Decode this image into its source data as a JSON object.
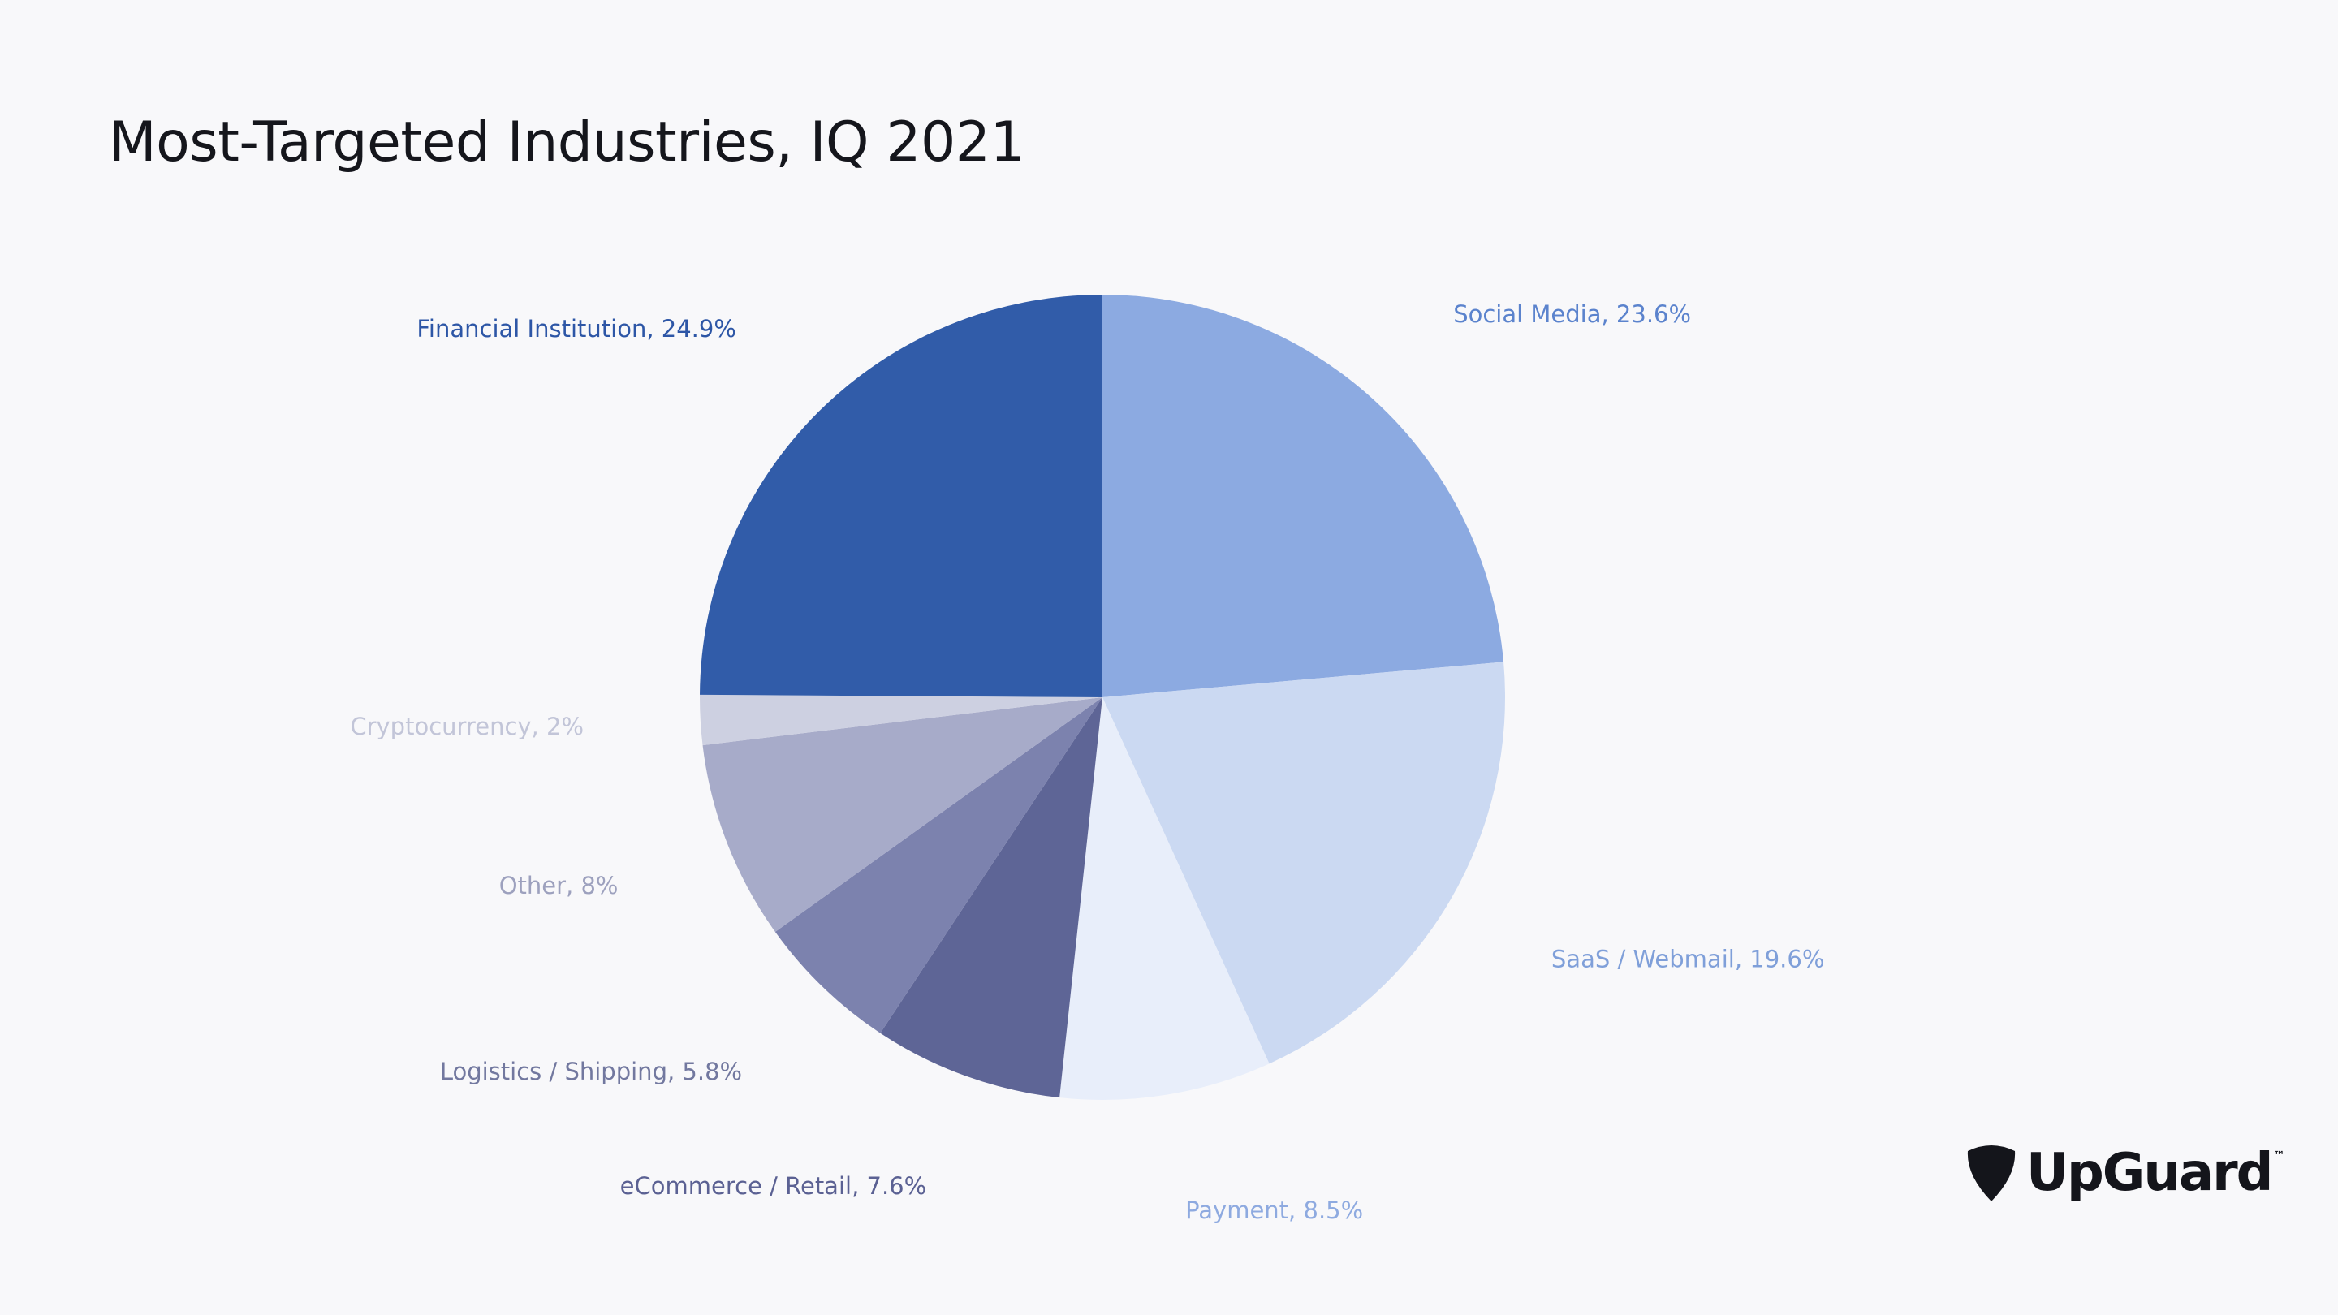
{
  "chart_data": {
    "type": "pie",
    "title": "Most-Targeted Industries, IQ 2021",
    "slices": [
      {
        "name": "Social Media",
        "value": 23.6,
        "label": "Social Media, 23.6%",
        "color": "#8caae1",
        "label_color": "#5b83cd"
      },
      {
        "name": "SaaS / Webmail",
        "value": 19.6,
        "label": "SaaS / Webmail, 19.6%",
        "color": "#cbd9f2",
        "label_color": "#7f9fd9"
      },
      {
        "name": "Payment",
        "value": 8.5,
        "label": "Payment, 8.5%",
        "color": "#e8eefa",
        "label_color": "#8eaae0"
      },
      {
        "name": "eCommerce / Retail",
        "value": 7.6,
        "label": "eCommerce / Retail, 7.6%",
        "color": "#5e6596",
        "label_color": "#5b6193"
      },
      {
        "name": "Logistics / Shipping",
        "value": 5.8,
        "label": "Logistics / Shipping, 5.8%",
        "color": "#7c82ae",
        "label_color": "#72789f"
      },
      {
        "name": "Other",
        "value": 8,
        "label": "Other, 8%",
        "color": "#a7abc9",
        "label_color": "#9da1be"
      },
      {
        "name": "Cryptocurrency",
        "value": 2,
        "label": "Cryptocurrency, 2%",
        "color": "#cdd0e1",
        "label_color": "#c2c5d8"
      },
      {
        "name": "Financial Institution",
        "value": 24.9,
        "label": "Financial Institution, 24.9%",
        "color": "#315ca9",
        "label_color": "#2d56a6"
      }
    ],
    "legend": "none"
  },
  "brand": {
    "name": "UpGuard",
    "trademark": "™",
    "icon": "pick-icon",
    "color": "#14151b"
  },
  "colors": {
    "background": "#f8f8fa",
    "title": "#15161c"
  }
}
